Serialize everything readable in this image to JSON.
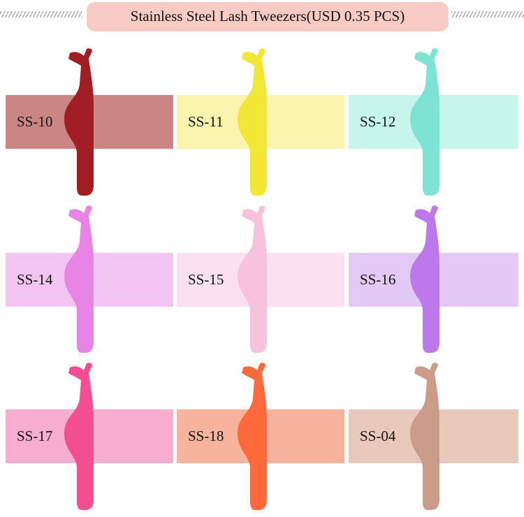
{
  "header": {
    "title": "Stainless Steel Lash Tweezers(USD 0.35 PCS)"
  },
  "items": [
    {
      "label": "SS-10"
    },
    {
      "label": "SS-11"
    },
    {
      "label": "SS-12"
    },
    {
      "label": "SS-14"
    },
    {
      "label": "SS-15"
    },
    {
      "label": "SS-16"
    },
    {
      "label": "SS-17"
    },
    {
      "label": "SS-18"
    },
    {
      "label": "SS-04"
    }
  ]
}
